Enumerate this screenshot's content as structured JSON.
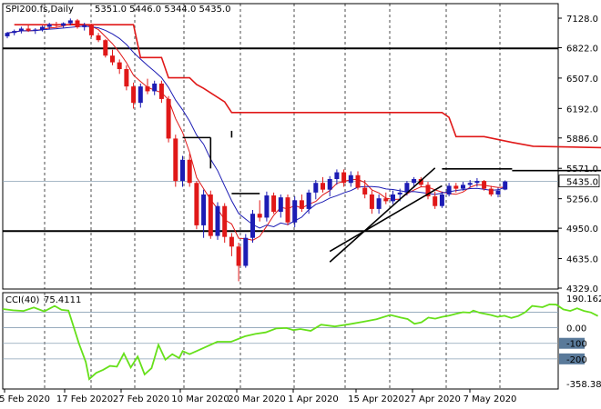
{
  "chart_data": [
    {
      "type": "candlestick",
      "header": {
        "symbol": "SPI200.fs,Daily",
        "ohlc": "5351.0 5446.0 5344.0 5435.0"
      },
      "last_price_label": "5435.0",
      "ylim": [
        4329,
        7128
      ],
      "y_tick_labels": [
        "7128.0",
        "6822.0",
        "6507.0",
        "6192.0",
        "5886.0",
        "5571.0",
        "5256.0",
        "4950.0",
        "4635.0",
        "4329.0"
      ],
      "x_tick_labels": [
        "5 Feb 2020",
        "17 Feb 2020",
        "27 Feb 2020",
        "10 Mar 2020",
        "20 Mar 2020",
        "1 Apr 2020",
        "15 Apr 2020",
        "27 Apr 2020",
        "7 May 2020"
      ],
      "grid": true,
      "colors": {
        "up": "#1c1cb4",
        "down": "#e01818",
        "fast_ma": "#e01818",
        "slow_ma": "#1c1cb4",
        "stop_line": "#e01818"
      },
      "horizontal_levels": [
        6815,
        4920,
        5435
      ],
      "candles": [
        {
          "date": "4 Feb 2020",
          "o": 6940,
          "h": 6985,
          "l": 6920,
          "c": 6975
        },
        {
          "date": "5 Feb 2020",
          "o": 6975,
          "h": 7010,
          "l": 6950,
          "c": 6995
        },
        {
          "date": "6 Feb 2020",
          "o": 6995,
          "h": 7040,
          "l": 6970,
          "c": 7020
        },
        {
          "date": "7 Feb 2020",
          "o": 7020,
          "h": 7055,
          "l": 6985,
          "c": 6998
        },
        {
          "date": "10 Feb 2020",
          "o": 6998,
          "h": 7025,
          "l": 6965,
          "c": 7010
        },
        {
          "date": "11 Feb 2020",
          "o": 7010,
          "h": 7050,
          "l": 6990,
          "c": 7038
        },
        {
          "date": "12 Feb 2020",
          "o": 7038,
          "h": 7080,
          "l": 7010,
          "c": 7065
        },
        {
          "date": "13 Feb 2020",
          "o": 7065,
          "h": 7090,
          "l": 7030,
          "c": 7050
        },
        {
          "date": "14 Feb 2020",
          "o": 7050,
          "h": 7085,
          "l": 7030,
          "c": 7075
        },
        {
          "date": "17 Feb 2020",
          "o": 7075,
          "h": 7125,
          "l": 7055,
          "c": 7105
        },
        {
          "date": "18 Feb 2020",
          "o": 7105,
          "h": 7120,
          "l": 7020,
          "c": 7035
        },
        {
          "date": "19 Feb 2020",
          "o": 7035,
          "h": 7080,
          "l": 7000,
          "c": 7055
        },
        {
          "date": "20 Feb 2020",
          "o": 7055,
          "h": 7070,
          "l": 6930,
          "c": 6950
        },
        {
          "date": "21 Feb 2020",
          "o": 6950,
          "h": 6975,
          "l": 6880,
          "c": 6900
        },
        {
          "date": "24 Feb 2020",
          "o": 6900,
          "h": 6910,
          "l": 6720,
          "c": 6740
        },
        {
          "date": "25 Feb 2020",
          "o": 6740,
          "h": 6800,
          "l": 6640,
          "c": 6670
        },
        {
          "date": "26 Feb 2020",
          "o": 6670,
          "h": 6700,
          "l": 6550,
          "c": 6600
        },
        {
          "date": "27 Feb 2020",
          "o": 6600,
          "h": 6640,
          "l": 6380,
          "c": 6420
        },
        {
          "date": "28 Feb 2020",
          "o": 6420,
          "h": 6460,
          "l": 6190,
          "c": 6250
        },
        {
          "date": "2 Mar 2020",
          "o": 6250,
          "h": 6450,
          "l": 6200,
          "c": 6420
        },
        {
          "date": "3 Mar 2020",
          "o": 6420,
          "h": 6500,
          "l": 6340,
          "c": 6370
        },
        {
          "date": "4 Mar 2020",
          "o": 6370,
          "h": 6480,
          "l": 6330,
          "c": 6450
        },
        {
          "date": "5 Mar 2020",
          "o": 6450,
          "h": 6480,
          "l": 6250,
          "c": 6290
        },
        {
          "date": "6 Mar 2020",
          "o": 6290,
          "h": 6320,
          "l": 5840,
          "c": 5880
        },
        {
          "date": "9 Mar 2020",
          "o": 5880,
          "h": 5920,
          "l": 5380,
          "c": 5440
        },
        {
          "date": "10 Mar 2020",
          "o": 5440,
          "h": 5700,
          "l": 5380,
          "c": 5660
        },
        {
          "date": "11 Mar 2020",
          "o": 5660,
          "h": 5720,
          "l": 5380,
          "c": 5420
        },
        {
          "date": "12 Mar 2020",
          "o": 5420,
          "h": 5440,
          "l": 4940,
          "c": 4980
        },
        {
          "date": "13 Mar 2020",
          "o": 4980,
          "h": 5350,
          "l": 4850,
          "c": 5300
        },
        {
          "date": "16 Mar 2020",
          "o": 5300,
          "h": 5340,
          "l": 4840,
          "c": 4870
        },
        {
          "date": "17 Mar 2020",
          "o": 4870,
          "h": 5220,
          "l": 4830,
          "c": 5180
        },
        {
          "date": "18 Mar 2020",
          "o": 5180,
          "h": 5210,
          "l": 4800,
          "c": 4860
        },
        {
          "date": "19 Mar 2020",
          "o": 4860,
          "h": 4900,
          "l": 4660,
          "c": 4760
        },
        {
          "date": "20 Mar 2020",
          "o": 4760,
          "h": 4800,
          "l": 4400,
          "c": 4560
        },
        {
          "date": "23 Mar 2020",
          "o": 4560,
          "h": 4890,
          "l": 4540,
          "c": 4850
        },
        {
          "date": "24 Mar 2020",
          "o": 4850,
          "h": 5140,
          "l": 4800,
          "c": 5100
        },
        {
          "date": "25 Mar 2020",
          "o": 5100,
          "h": 5240,
          "l": 5020,
          "c": 5060
        },
        {
          "date": "26 Mar 2020",
          "o": 5060,
          "h": 5330,
          "l": 5020,
          "c": 5290
        },
        {
          "date": "27 Mar 2020",
          "o": 5290,
          "h": 5320,
          "l": 5100,
          "c": 5120
        },
        {
          "date": "30 Mar 2020",
          "o": 5120,
          "h": 5300,
          "l": 5060,
          "c": 5270
        },
        {
          "date": "31 Mar 2020",
          "o": 5270,
          "h": 5300,
          "l": 4980,
          "c": 5010
        },
        {
          "date": "1 Apr 2020",
          "o": 5010,
          "h": 5280,
          "l": 4960,
          "c": 5240
        },
        {
          "date": "2 Apr 2020",
          "o": 5240,
          "h": 5300,
          "l": 5120,
          "c": 5150
        },
        {
          "date": "3 Apr 2020",
          "o": 5150,
          "h": 5350,
          "l": 5100,
          "c": 5320
        },
        {
          "date": "6 Apr 2020",
          "o": 5320,
          "h": 5450,
          "l": 5250,
          "c": 5420
        },
        {
          "date": "7 Apr 2020",
          "o": 5420,
          "h": 5480,
          "l": 5320,
          "c": 5350
        },
        {
          "date": "8 Apr 2020",
          "o": 5350,
          "h": 5490,
          "l": 5280,
          "c": 5460
        },
        {
          "date": "9 Apr 2020",
          "o": 5460,
          "h": 5560,
          "l": 5400,
          "c": 5530
        },
        {
          "date": "14 Apr 2020",
          "o": 5530,
          "h": 5560,
          "l": 5380,
          "c": 5420
        },
        {
          "date": "15 Apr 2020",
          "o": 5420,
          "h": 5540,
          "l": 5380,
          "c": 5500
        },
        {
          "date": "16 Apr 2020",
          "o": 5500,
          "h": 5540,
          "l": 5350,
          "c": 5370
        },
        {
          "date": "17 Apr 2020",
          "o": 5370,
          "h": 5450,
          "l": 5260,
          "c": 5300
        },
        {
          "date": "20 Apr 2020",
          "o": 5300,
          "h": 5340,
          "l": 5100,
          "c": 5150
        },
        {
          "date": "21 Apr 2020",
          "o": 5150,
          "h": 5300,
          "l": 5100,
          "c": 5260
        },
        {
          "date": "22 Apr 2020",
          "o": 5260,
          "h": 5320,
          "l": 5200,
          "c": 5230
        },
        {
          "date": "23 Apr 2020",
          "o": 5230,
          "h": 5340,
          "l": 5200,
          "c": 5300
        },
        {
          "date": "24 Apr 2020",
          "o": 5300,
          "h": 5360,
          "l": 5230,
          "c": 5320
        },
        {
          "date": "27 Apr 2020",
          "o": 5320,
          "h": 5440,
          "l": 5290,
          "c": 5420
        },
        {
          "date": "28 Apr 2020",
          "o": 5420,
          "h": 5480,
          "l": 5370,
          "c": 5460
        },
        {
          "date": "29 Apr 2020",
          "o": 5460,
          "h": 5480,
          "l": 5380,
          "c": 5400
        },
        {
          "date": "30 Apr 2020",
          "o": 5400,
          "h": 5430,
          "l": 5250,
          "c": 5280
        },
        {
          "date": "1 May 2020",
          "o": 5280,
          "h": 5330,
          "l": 5150,
          "c": 5180
        },
        {
          "date": "4 May 2020",
          "o": 5180,
          "h": 5330,
          "l": 5160,
          "c": 5300
        },
        {
          "date": "5 May 2020",
          "o": 5300,
          "h": 5420,
          "l": 5280,
          "c": 5390
        },
        {
          "date": "6 May 2020",
          "o": 5390,
          "h": 5420,
          "l": 5320,
          "c": 5360
        },
        {
          "date": "7 May 2020",
          "o": 5360,
          "h": 5430,
          "l": 5340,
          "c": 5400
        },
        {
          "date": "8 May 2020",
          "o": 5400,
          "h": 5450,
          "l": 5370,
          "c": 5420
        },
        {
          "date": "11 May 2020",
          "o": 5420,
          "h": 5470,
          "l": 5380,
          "c": 5440
        },
        {
          "date": "12 May 2020",
          "o": 5440,
          "h": 5450,
          "l": 5340,
          "c": 5360
        },
        {
          "date": "13 May 2020",
          "o": 5360,
          "h": 5390,
          "l": 5280,
          "c": 5300
        },
        {
          "date": "14 May 2020",
          "o": 5300,
          "h": 5370,
          "l": 5270,
          "c": 5340
        },
        {
          "date": "15 May 2020",
          "o": 5351,
          "h": 5446,
          "l": 5344,
          "c": 5435
        }
      ],
      "stop_line": [
        [
          1,
          7060
        ],
        [
          18,
          7060
        ],
        [
          19,
          6720
        ],
        [
          22,
          6720
        ],
        [
          23,
          6510
        ],
        [
          26,
          6510
        ],
        [
          27,
          6440
        ],
        [
          28,
          6400
        ],
        [
          31,
          6260
        ],
        [
          32,
          6150
        ],
        [
          62,
          6150
        ],
        [
          63,
          6100
        ],
        [
          64,
          5900
        ],
        [
          68,
          5900
        ],
        [
          72,
          5840
        ],
        [
          75,
          5800
        ],
        [
          88,
          5780
        ],
        [
          90,
          5725
        ],
        [
          91,
          5725
        ]
      ],
      "trend_lines": [
        [
          [
            46,
            4600
          ],
          [
            61,
            5575
          ]
        ],
        [
          [
            46,
            4710
          ],
          [
            62,
            5390
          ]
        ],
        [
          [
            62,
            5565
          ],
          [
            72,
            5565
          ]
        ],
        [
          [
            72,
            5548
          ],
          [
            87,
            5548
          ]
        ]
      ],
      "bracket_marks": [
        [
          [
            29,
            5890
          ],
          [
            29,
            5570
          ]
        ],
        [
          [
            25,
            5890
          ],
          [
            29,
            5890
          ]
        ],
        [
          [
            32,
            5960
          ],
          [
            32,
            5890
          ]
        ],
        [
          [
            32,
            5310
          ],
          [
            36,
            5310
          ]
        ]
      ]
    },
    {
      "type": "line",
      "indicator": "CCI(40)",
      "value_label": "75.4111",
      "ylim": [
        -358.382,
        190.1622
      ],
      "y_tick_labels": [
        "190.1622",
        "0.00",
        "-100",
        "-200",
        "-358.382"
      ],
      "levels": [
        100,
        0,
        -100,
        -200
      ],
      "color": "#66e01a",
      "values": [
        [
          0,
          120
        ],
        [
          3,
          112
        ],
        [
          6,
          108
        ],
        [
          9,
          130
        ],
        [
          12,
          105
        ],
        [
          15,
          140
        ],
        [
          17,
          115
        ],
        [
          19,
          110
        ],
        [
          22,
          -100
        ],
        [
          24,
          -220
        ],
        [
          25,
          -330
        ],
        [
          27,
          -290
        ],
        [
          29,
          -270
        ],
        [
          31,
          -245
        ],
        [
          33,
          -250
        ],
        [
          35,
          -165
        ],
        [
          37,
          -255
        ],
        [
          39,
          -185
        ],
        [
          41,
          -300
        ],
        [
          43,
          -260
        ],
        [
          45,
          -110
        ],
        [
          47,
          -205
        ],
        [
          49,
          -170
        ],
        [
          51,
          -195
        ],
        [
          52,
          -150
        ],
        [
          54,
          -170
        ],
        [
          56,
          -150
        ],
        [
          59,
          -120
        ],
        [
          62,
          -90
        ],
        [
          66,
          -90
        ],
        [
          70,
          -55
        ],
        [
          73,
          -40
        ],
        [
          76,
          -30
        ],
        [
          79,
          -5
        ],
        [
          82,
          -2
        ],
        [
          84,
          -15
        ],
        [
          86,
          -8
        ],
        [
          89,
          -20
        ],
        [
          92,
          20
        ],
        [
          96,
          8
        ],
        [
          100,
          22
        ],
        [
          104,
          38
        ],
        [
          108,
          55
        ],
        [
          112,
          82
        ],
        [
          115,
          65
        ],
        [
          117,
          56
        ],
        [
          119,
          25
        ],
        [
          121,
          35
        ],
        [
          123,
          65
        ],
        [
          125,
          58
        ],
        [
          127,
          70
        ],
        [
          129,
          78
        ],
        [
          131,
          90
        ],
        [
          133,
          100
        ],
        [
          135,
          97
        ],
        [
          136,
          110
        ],
        [
          138,
          95
        ],
        [
          141,
          82
        ],
        [
          143,
          70
        ],
        [
          145,
          77
        ],
        [
          147,
          63
        ],
        [
          149,
          75
        ],
        [
          151,
          100
        ],
        [
          153,
          140
        ],
        [
          156,
          132
        ],
        [
          158,
          150
        ],
        [
          160,
          148
        ],
        [
          162,
          118
        ],
        [
          164,
          108
        ],
        [
          166,
          125
        ],
        [
          168,
          108
        ],
        [
          170,
          98
        ],
        [
          172,
          75
        ]
      ]
    }
  ]
}
